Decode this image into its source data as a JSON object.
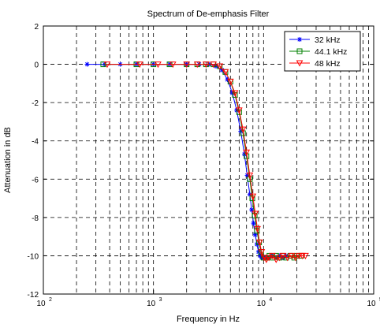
{
  "chart_data": {
    "type": "line",
    "title": "Spectrum of De-emphasis Filter",
    "xlabel": "Frequency in Hz",
    "ylabel": "Attenuation in dB",
    "xscale": "log",
    "xlim": [
      100,
      100000
    ],
    "ylim": [
      -12,
      2
    ],
    "x_ticks": [
      {
        "base": "10",
        "exp": "2"
      },
      {
        "base": "10",
        "exp": "3"
      },
      {
        "base": "10",
        "exp": "4"
      },
      {
        "base": "10",
        "exp": "5"
      }
    ],
    "y_ticks": [
      "2",
      "0",
      "-2",
      "-4",
      "-6",
      "-8",
      "-10",
      "-12"
    ],
    "y_tick_values": [
      2,
      0,
      -2,
      -4,
      -6,
      -8,
      -10,
      -12
    ],
    "grid": true,
    "legend_position": "top-right",
    "series": [
      {
        "name": "32 kHz",
        "color": "#0000ff",
        "marker": "asterisk",
        "x": [
          250,
          360,
          500,
          700,
          1000,
          1400,
          2000,
          2600,
          3200,
          3700,
          4200,
          4700,
          5200,
          5700,
          6200,
          6700,
          7100,
          7500,
          7800,
          8100,
          8400,
          8700,
          9000,
          9300,
          9600,
          10000,
          10500,
          11200,
          12000,
          13000,
          14000,
          15000,
          16000
        ],
        "y": [
          0,
          0,
          0,
          0,
          0,
          0,
          0,
          0,
          0,
          -0.1,
          -0.3,
          -0.8,
          -1.5,
          -2.4,
          -3.5,
          -4.7,
          -5.8,
          -6.8,
          -7.6,
          -8.3,
          -8.9,
          -9.4,
          -9.8,
          -10.0,
          -10.1,
          -10.1,
          -10.1,
          -10.1,
          -10.0,
          -10.1,
          -10.0,
          -10.1,
          -10.0
        ]
      },
      {
        "name": "44.1 kHz",
        "color": "#008000",
        "marker": "square",
        "x": [
          350,
          700,
          1000,
          1400,
          2000,
          2500,
          3000,
          3500,
          4000,
          4500,
          5000,
          5500,
          6000,
          6500,
          7000,
          7500,
          7900,
          8300,
          8700,
          9100,
          9500,
          10000,
          10600,
          11300,
          12100,
          13000,
          14000,
          15000,
          16000,
          17500,
          19000,
          20000,
          22000
        ],
        "y": [
          0,
          0,
          0,
          0,
          0,
          0,
          0,
          0,
          -0.1,
          -0.4,
          -0.9,
          -1.6,
          -2.5,
          -3.6,
          -4.8,
          -6.0,
          -7.0,
          -7.9,
          -8.7,
          -9.3,
          -9.8,
          -10.1,
          -10.1,
          -10.0,
          -10.1,
          -10.0,
          -10.1,
          -10.0,
          -10.1,
          -10.0,
          -10.1,
          -10.0,
          -10.0
        ]
      },
      {
        "name": "48 kHz",
        "color": "#ff0000",
        "marker": "triangle-down",
        "x": [
          380,
          750,
          1100,
          1500,
          2000,
          2500,
          3000,
          3500,
          4000,
          4500,
          5000,
          5500,
          6000,
          6500,
          7000,
          7500,
          8000,
          8400,
          8800,
          9200,
          9600,
          10100,
          10600,
          11200,
          12000,
          13000,
          14000,
          15000,
          16500,
          18000,
          19500,
          21000,
          22500,
          24000
        ],
        "y": [
          0,
          0,
          0,
          0,
          0,
          0,
          0,
          0,
          -0.1,
          -0.4,
          -0.9,
          -1.5,
          -2.4,
          -3.4,
          -4.6,
          -5.8,
          -6.9,
          -7.8,
          -8.6,
          -9.3,
          -9.8,
          -10.1,
          -10.2,
          -10.1,
          -10.0,
          -10.2,
          -10.1,
          -10.0,
          -10.1,
          -10.0,
          -10.1,
          -10.0,
          -10.0,
          -10.0
        ]
      }
    ]
  }
}
